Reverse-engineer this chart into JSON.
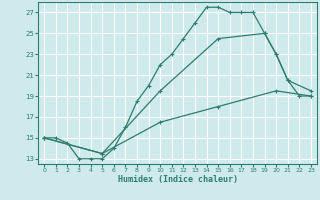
{
  "xlabel": "Humidex (Indice chaleur)",
  "background_color": "#ceeaed",
  "grid_color": "#b0d8dc",
  "line_color": "#2e7d6e",
  "xlim": [
    -0.5,
    23.5
  ],
  "ylim": [
    12.5,
    28.0
  ],
  "xticks": [
    0,
    1,
    2,
    3,
    4,
    5,
    6,
    7,
    8,
    9,
    10,
    11,
    12,
    13,
    14,
    15,
    16,
    17,
    18,
    19,
    20,
    21,
    22,
    23
  ],
  "yticks": [
    13,
    15,
    17,
    19,
    21,
    23,
    25,
    27
  ],
  "line1_x": [
    0,
    1,
    2,
    3,
    4,
    5,
    6,
    7,
    8,
    9,
    10,
    11,
    12,
    13,
    14,
    15,
    16,
    17,
    18,
    19,
    20,
    21,
    22,
    23
  ],
  "line1_y": [
    15.0,
    15.0,
    14.5,
    13.0,
    13.0,
    13.0,
    14.0,
    16.0,
    18.5,
    20.0,
    22.0,
    23.0,
    24.5,
    26.0,
    27.5,
    27.5,
    27.0,
    27.0,
    27.0,
    25.0,
    23.0,
    20.5,
    19.0,
    19.0
  ],
  "line2_x": [
    0,
    5,
    10,
    15,
    19,
    20,
    21,
    23
  ],
  "line2_y": [
    15.0,
    13.5,
    19.5,
    24.5,
    25.0,
    23.0,
    20.5,
    19.5
  ],
  "line3_x": [
    0,
    5,
    10,
    15,
    20,
    23
  ],
  "line3_y": [
    15.0,
    13.5,
    16.5,
    18.0,
    19.5,
    19.0
  ]
}
